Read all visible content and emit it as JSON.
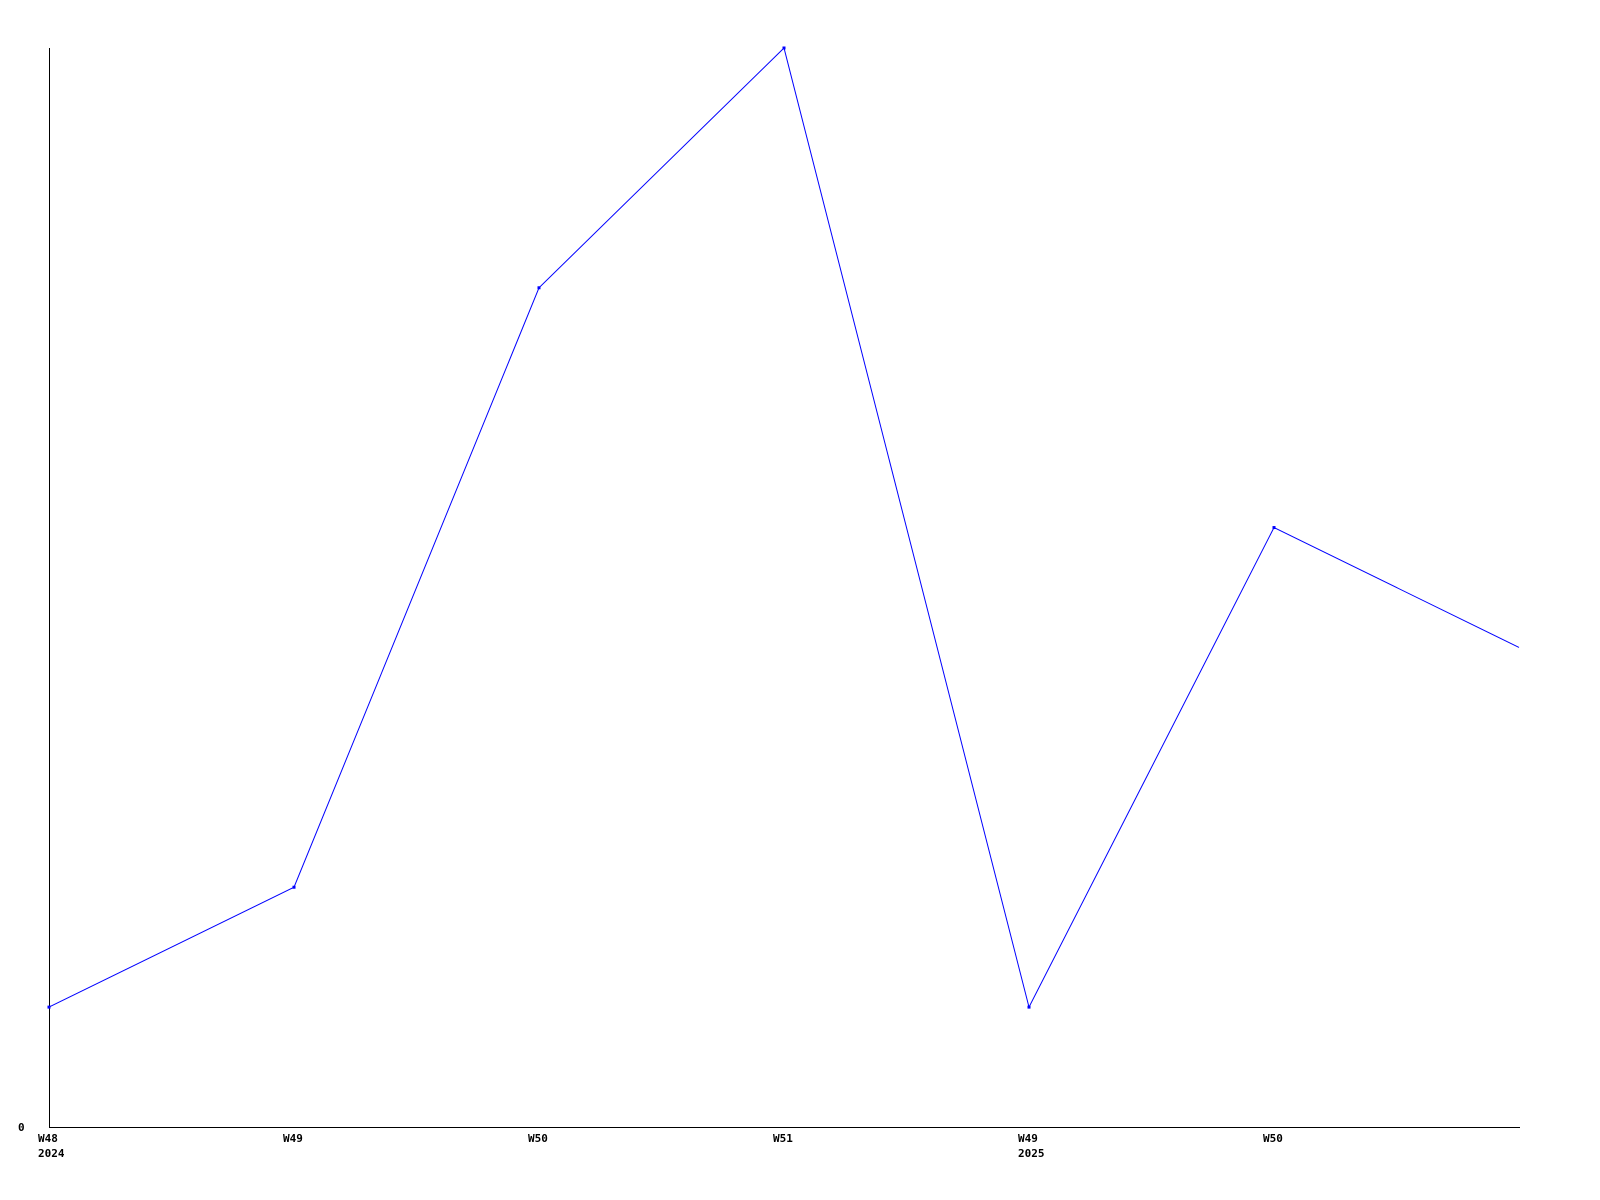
{
  "chart_data": {
    "type": "line",
    "title": "",
    "xlabel": "",
    "ylabel": "",
    "x": [
      "W48",
      "W49",
      "W50",
      "W51",
      "W49",
      "W50",
      ""
    ],
    "x_sublabels": [
      "2024",
      "",
      "",
      "",
      "2025",
      "",
      ""
    ],
    "y_tick_labels": [
      "0"
    ],
    "ylim": [
      0,
      9
    ],
    "grid": false,
    "series": [
      {
        "values": [
          1,
          2,
          7,
          9,
          1,
          5,
          4
        ],
        "color": "#0000ff"
      }
    ]
  }
}
